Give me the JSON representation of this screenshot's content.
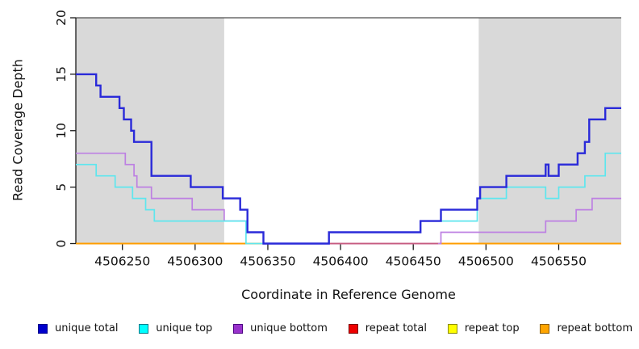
{
  "figure": {
    "ylabel": "Read Coverage Depth",
    "xlabel": "Coordinate in Reference Genome"
  },
  "chart_data": {
    "type": "line",
    "subtype": "step",
    "title": "",
    "xlabel": "Coordinate in Reference Genome",
    "ylabel": "Read Coverage Depth",
    "x_range": [
      4506218,
      4506593
    ],
    "y_range": [
      0,
      20
    ],
    "x_ticks": [
      4506250,
      4506300,
      4506350,
      4506400,
      4506450,
      4506500,
      4506550
    ],
    "y_ticks": [
      0,
      5,
      10,
      15,
      20
    ],
    "grid": false,
    "legend_position": "bottom",
    "shaded_regions": [
      {
        "x_start": 4506218,
        "x_end": 4506320,
        "color": "#d9d9d9"
      },
      {
        "x_start": 4506495,
        "x_end": 4506593,
        "color": "#d9d9d9"
      }
    ],
    "top_border_color": "#4d4d4d",
    "axis_color": "#1a1a1a",
    "series": [
      {
        "name": "unique_total",
        "label": "unique total",
        "line_color": "#2a2ad9",
        "legend_color": "#0000cc",
        "legend_border": "#00008b",
        "width": 2.4,
        "points": [
          [
            4506218,
            15
          ],
          [
            4506232,
            14
          ],
          [
            4506235,
            13
          ],
          [
            4506248,
            12
          ],
          [
            4506251,
            11
          ],
          [
            4506256,
            10
          ],
          [
            4506258,
            9
          ],
          [
            4506270,
            6
          ],
          [
            4506297,
            5
          ],
          [
            4506319,
            4
          ],
          [
            4506331,
            3
          ],
          [
            4506336,
            1
          ],
          [
            4506347,
            0
          ],
          [
            4506392,
            1
          ],
          [
            4506455,
            2
          ],
          [
            4506469,
            3
          ],
          [
            4506494,
            4
          ],
          [
            4506496,
            5
          ],
          [
            4506514,
            6
          ],
          [
            4506541,
            7
          ],
          [
            4506543,
            6
          ],
          [
            4506550,
            7
          ],
          [
            4506563,
            8
          ],
          [
            4506568,
            9
          ],
          [
            4506571,
            11
          ],
          [
            4506582,
            12
          ]
        ]
      },
      {
        "name": "unique_top",
        "label": "unique top",
        "line_color": "#5ee6ee",
        "legend_color": "#00ffff",
        "legend_border": "#007a8a",
        "width": 1.7,
        "points": [
          [
            4506218,
            7
          ],
          [
            4506232,
            6
          ],
          [
            4506245,
            5
          ],
          [
            4506257,
            4
          ],
          [
            4506266,
            3
          ],
          [
            4506272,
            2
          ],
          [
            4506335,
            0
          ],
          [
            4506392,
            1
          ],
          [
            4506455,
            2
          ],
          [
            4506494,
            4
          ],
          [
            4506514,
            5
          ],
          [
            4506541,
            4
          ],
          [
            4506550,
            5
          ],
          [
            4506568,
            6
          ],
          [
            4506582,
            8
          ]
        ]
      },
      {
        "name": "unique_bottom",
        "label": "unique bottom",
        "line_color": "#bd80e2",
        "legend_color": "#9932cc",
        "legend_border": "#4b0082",
        "width": 1.7,
        "points": [
          [
            4506218,
            8
          ],
          [
            4506252,
            7
          ],
          [
            4506258,
            6
          ],
          [
            4506260,
            5
          ],
          [
            4506270,
            4
          ],
          [
            4506298,
            3
          ],
          [
            4506320,
            2
          ],
          [
            4506336,
            1
          ],
          [
            4506347,
            0
          ],
          [
            4506469,
            1
          ],
          [
            4506541,
            2
          ],
          [
            4506562,
            3
          ],
          [
            4506573,
            4
          ]
        ]
      },
      {
        "name": "repeat_total",
        "label": "repeat total",
        "line_color": "#c75b80",
        "legend_color": "#ee0000",
        "legend_border": "#7a0000",
        "width": 1.8,
        "extend": false,
        "points": [
          [
            4506392,
            0
          ],
          [
            4506467,
            0
          ]
        ]
      },
      {
        "name": "repeat_top",
        "label": "repeat top",
        "line_color": "#f2e94e",
        "legend_color": "#ffff00",
        "legend_border": "#8a8a00",
        "width": 1.7,
        "points": [
          [
            4506218,
            0
          ],
          [
            4506593,
            0
          ]
        ]
      },
      {
        "name": "repeat_bottom",
        "label": "repeat bottom",
        "line_color": "#ff9d00",
        "legend_color": "#ffa500",
        "legend_border": "#8a5a00",
        "width": 2.0,
        "points": [
          [
            4506218,
            0
          ],
          [
            4506593,
            0
          ]
        ]
      }
    ]
  }
}
